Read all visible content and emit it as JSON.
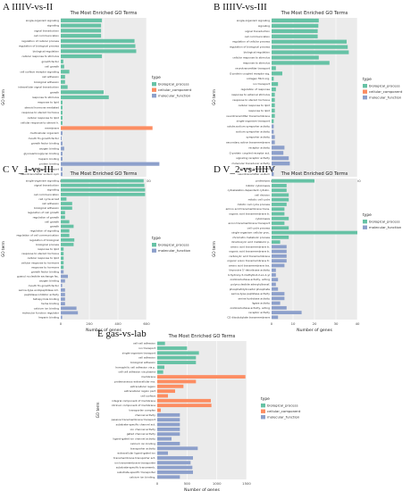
{
  "panels": [
    {
      "letter": "A",
      "label": "IIIIV-vs-II"
    },
    {
      "letter": "B",
      "label": "IIIIV-vs-III"
    },
    {
      "letter": "C",
      "label": "V_1-vs-III"
    },
    {
      "letter": "D",
      "label": "V_2-vs-IIIIV"
    },
    {
      "letter": "E",
      "label": "gas-vs-lab"
    }
  ],
  "colors": {
    "biological_process": "#66c2a5",
    "cellular_component": "#fc8d62",
    "molecular_function": "#8da0cb"
  },
  "chart_data": [
    {
      "type": "bar",
      "orientation": "horizontal",
      "title": "The Most Enriched GO Terms",
      "xlabel": "Number of genes",
      "ylabel": "GO term",
      "xticks": [
        0,
        500,
        1000
      ],
      "xlim": [
        0,
        1000
      ],
      "legend_title": "type",
      "legend": [
        "biological_process",
        "cellular_component",
        "molecular_function"
      ],
      "legend_position": "right",
      "categories": [
        "single-organism signaling",
        "signaling",
        "signal transduction",
        "cell communication",
        "regulation of cellular process",
        "regulation of biological process",
        "biological regulation",
        "cellular response to stimulus",
        "growth factor",
        "cell growth",
        "cell surface receptor signaling",
        "cell adhesion",
        "biological adhesion",
        "intracellular signal transduction",
        "growth",
        "response to stimulus",
        "response to lipid",
        "steroid hormone mediated",
        "response to steroid hormone",
        "cellular response to lipid",
        "cellular response to steroid h.",
        "membrane",
        "multicellular organism",
        "mouth fin growth factor",
        "growth factor binding",
        "oxygen binding",
        "glycosaminoglycan binding",
        "heparin binding",
        "protein binding",
        "neurotransmitter transport",
        "neurotransmitter sodium sym"
      ],
      "types": [
        "BP",
        "BP",
        "BP",
        "BP",
        "BP",
        "BP",
        "BP",
        "BP",
        "BP",
        "BP",
        "BP",
        "BP",
        "BP",
        "BP",
        "BP",
        "BP",
        "BP",
        "BP",
        "BP",
        "BP",
        "BP",
        "CC",
        "MF",
        "MF",
        "MF",
        "MF",
        "MF",
        "MF",
        "MF",
        "MF",
        "MF"
      ],
      "values": [
        480,
        470,
        470,
        470,
        860,
        870,
        880,
        480,
        30,
        40,
        100,
        50,
        50,
        80,
        500,
        560,
        20,
        20,
        20,
        20,
        20,
        1070,
        20,
        10,
        20,
        40,
        20,
        20,
        1150,
        20,
        20
      ]
    },
    {
      "type": "bar",
      "orientation": "horizontal",
      "title": "The Most Enriched GO Terms",
      "xlabel": "Number of genes",
      "ylabel": "GO term",
      "xticks": [
        0,
        100,
        200,
        300,
        400
      ],
      "xlim": [
        0,
        400
      ],
      "legend_title": "type",
      "legend": [
        "biological_process",
        "cellular_component",
        "molecular_function"
      ],
      "legend_position": "right",
      "categories": [
        "single-organism signaling",
        "signaling",
        "signal transduction",
        "cell communication",
        "regulation of cellular process",
        "regulation of biological process",
        "biological regulation",
        "cellular response to stimulus",
        "response to stimulus",
        "neurotransmitter transport",
        "G-protein coupled receptor sig.",
        "collagen fibril org.",
        "ion transport",
        "regulation of response",
        "response to external stimulus",
        "response to steroid hormone",
        "cellular response to lipid",
        "response to lipid",
        "neurotransmitter transmembrane",
        "single-organism transport",
        "solute:sodium symporter activity",
        "sodium symporter activity",
        "symporter activity",
        "secondary active transmembrane",
        "receptor activity",
        "G-protein coupled receptor act.",
        "signaling receptor activity",
        "molecular transducer activity",
        "amiloride lyase activity",
        "neurotransmitter sodium"
      ],
      "types": [
        "BP",
        "BP",
        "BP",
        "BP",
        "BP",
        "BP",
        "BP",
        "BP",
        "BP",
        "BP",
        "BP",
        "BP",
        "BP",
        "BP",
        "BP",
        "BP",
        "BP",
        "BP",
        "BP",
        "BP",
        "MF",
        "MF",
        "MF",
        "MF",
        "MF",
        "MF",
        "MF",
        "MF",
        "MF",
        "MF"
      ],
      "values": [
        220,
        218,
        215,
        215,
        350,
        355,
        360,
        220,
        270,
        20,
        50,
        10,
        30,
        20,
        15,
        15,
        15,
        15,
        15,
        10,
        10,
        10,
        15,
        15,
        60,
        55,
        80,
        85,
        10,
        10
      ]
    },
    {
      "type": "bar",
      "orientation": "horizontal",
      "title": "The Most Enriched GO Terms",
      "xlabel": "Number of genes",
      "ylabel": "GO term",
      "xticks": [
        0,
        200,
        400,
        600
      ],
      "xlim": [
        0,
        600
      ],
      "legend_title": "type",
      "legend": [
        "biological_process",
        "molecular_function"
      ],
      "legend_position": "right",
      "categories": [
        "single-organism signaling",
        "signal transduction",
        "signaling",
        "cell communication",
        "cell cycle arrest",
        "cell adhesion",
        "biological adhesion",
        "regulation of cell growth",
        "regulation of growth",
        "cell growth",
        "growth",
        "regulation of signaling",
        "regulation of cell communication",
        "regulation of biological",
        "biological process",
        "response to lipid",
        "response to steroid hormone",
        "cellular response to lipid",
        "cellular response to hormone",
        "response to hormone",
        "growth factor binding",
        "guanyl nucleotide exchange fac.",
        "oxygen binding",
        "mouth fin growth factor",
        "serine-type endopeptidase inh.",
        "peptidase inhibitor activity",
        "tetrapyrrole binding",
        "heme binding",
        "calcium ion binding",
        "molecular function regulator",
        "heparin binding"
      ],
      "types": [
        "BP",
        "BP",
        "BP",
        "BP",
        "BP",
        "BP",
        "BP",
        "BP",
        "BP",
        "BP",
        "BP",
        "BP",
        "BP",
        "BP",
        "BP",
        "BP",
        "BP",
        "BP",
        "BP",
        "BP",
        "MF",
        "MF",
        "MF",
        "MF",
        "MF",
        "MF",
        "MF",
        "MF",
        "MF",
        "MF",
        "MF"
      ],
      "values": [
        580,
        585,
        590,
        590,
        40,
        80,
        80,
        30,
        30,
        60,
        90,
        60,
        60,
        95,
        90,
        20,
        20,
        20,
        20,
        20,
        20,
        50,
        30,
        10,
        30,
        30,
        30,
        30,
        110,
        120,
        10
      ]
    },
    {
      "type": "bar",
      "orientation": "horizontal",
      "title": "The Most Enriched GO Terms",
      "xlabel": "Number of genes",
      "ylabel": "GO term",
      "xticks": [
        0,
        10,
        20,
        30,
        40
      ],
      "xlim": [
        0,
        40
      ],
      "legend_title": "type",
      "legend": [
        "biological_process",
        "molecular_function"
      ],
      "legend_position": "right",
      "categories": [
        "proteolysis",
        "mitotic cytokinesis",
        "cytoskeleton-dependent cytokin.",
        "cell division",
        "mitotic cell cycle",
        "mitotic cell cycle process",
        "amino acid transmembrane trans.",
        "organic acid transmembrane tr.",
        "cytokinesis",
        "anion transmembrane transport",
        "cell cycle process",
        "single-organism cellular proc.",
        "chromatin metabolic process",
        "dicarboxylic acid metabolic p.",
        "amino acid transmembrane tr.",
        "organic acid transmembrane tr.",
        "carboxylic acid transmembrane",
        "organic anion transmembrane tr.",
        "amino acid transmembrane tra.",
        "thyroxine 5'-deiodinase activity",
        "4-hydroxy-3-methylbut-2-en-1-yl",
        "oxidoreductase activity, acting",
        "polynucleotide adenylyltransf.",
        "phosphatidylinositol phosphate",
        "serine-type peptidase activity",
        "serine hydrolase activity",
        "ligase activity",
        "oxidoreductase activity, acting",
        "receptor activity",
        "CS diisobutylate transmembrane"
      ],
      "types": [
        "BP",
        "BP",
        "BP",
        "BP",
        "BP",
        "BP",
        "BP",
        "BP",
        "BP",
        "BP",
        "BP",
        "BP",
        "BP",
        "BP",
        "MF",
        "MF",
        "MF",
        "MF",
        "MF",
        "MF",
        "MF",
        "MF",
        "MF",
        "MF",
        "MF",
        "MF",
        "MF",
        "MF",
        "MF",
        "MF"
      ],
      "values": [
        20,
        7,
        7,
        8,
        8,
        7,
        6,
        6,
        8,
        6,
        8,
        40,
        8,
        4,
        7,
        7,
        7,
        7,
        6,
        2,
        2,
        3,
        2,
        3,
        6,
        6,
        4,
        7,
        14,
        3
      ]
    },
    {
      "type": "bar",
      "orientation": "horizontal",
      "title": "The Most Enriched GO Terms",
      "xlabel": "Number of genes",
      "ylabel": "GO term",
      "xticks": [
        0,
        500,
        1000,
        1500
      ],
      "xlim": [
        0,
        1500
      ],
      "legend_title": "type",
      "legend": [
        "biological_process",
        "cellular_component",
        "molecular_function"
      ],
      "legend_position": "right",
      "categories": [
        "cell-cell adhesion",
        "ion transport",
        "single-organism transport",
        "cell adhesion",
        "biological adhesion",
        "homophilic cell adhesion via p.",
        "cell-cell adhesion via plasma",
        "membrane",
        "proteinaceous extracellular ma.",
        "extracellular region",
        "extracellular region part",
        "cell surface",
        "integral component of membrane",
        "intrinsic component of membrane",
        "transporter complex",
        "channel activity",
        "passive transmembrane transport",
        "substrate-specific channel act.",
        "ion channel activity",
        "gated channel activity",
        "ligand-gated ion channel activity",
        "calcium ion binding",
        "transporter activity",
        "extracellular ligand-gated ion",
        "transmembrane transporter act.",
        "ion transmembrane transporter",
        "substrate-specific transmemb.",
        "substrate-specific transporter",
        "calcium ion binding."
      ],
      "types": [
        "BP",
        "BP",
        "BP",
        "BP",
        "BP",
        "BP",
        "BP",
        "CC",
        "CC",
        "CC",
        "CC",
        "CC",
        "CC",
        "CC",
        "CC",
        "MF",
        "MF",
        "MF",
        "MF",
        "MF",
        "MF",
        "MF",
        "MF",
        "MF",
        "MF",
        "MF",
        "MF",
        "MF",
        "MF"
      ],
      "values": [
        130,
        500,
        700,
        650,
        650,
        120,
        100,
        1480,
        650,
        440,
        300,
        180,
        900,
        910,
        60,
        380,
        380,
        380,
        380,
        380,
        240,
        380,
        680,
        180,
        600,
        560,
        590,
        600,
        380
      ]
    }
  ]
}
